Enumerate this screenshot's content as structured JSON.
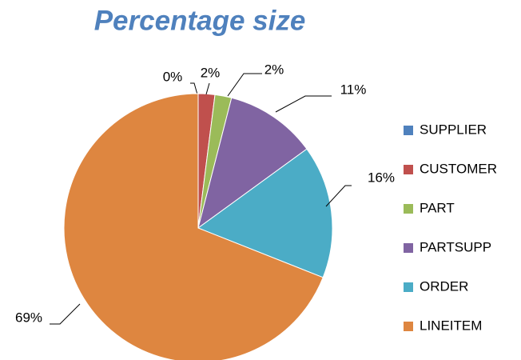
{
  "chart_data": {
    "type": "pie",
    "title": "Percentage size",
    "categories": [
      "SUPPLIER",
      "CUSTOMER",
      "PART",
      "PARTSUPP",
      "ORDER",
      "LINEITEM"
    ],
    "values": [
      0,
      2,
      2,
      11,
      16,
      69
    ],
    "value_labels": [
      "0%",
      "2%",
      "2%",
      "11%",
      "16%",
      "69%"
    ],
    "colors": [
      "#4F81BD",
      "#C0504D",
      "#9BBB59",
      "#8064A2",
      "#4BACC6",
      "#DE8640"
    ],
    "legend": "right"
  }
}
